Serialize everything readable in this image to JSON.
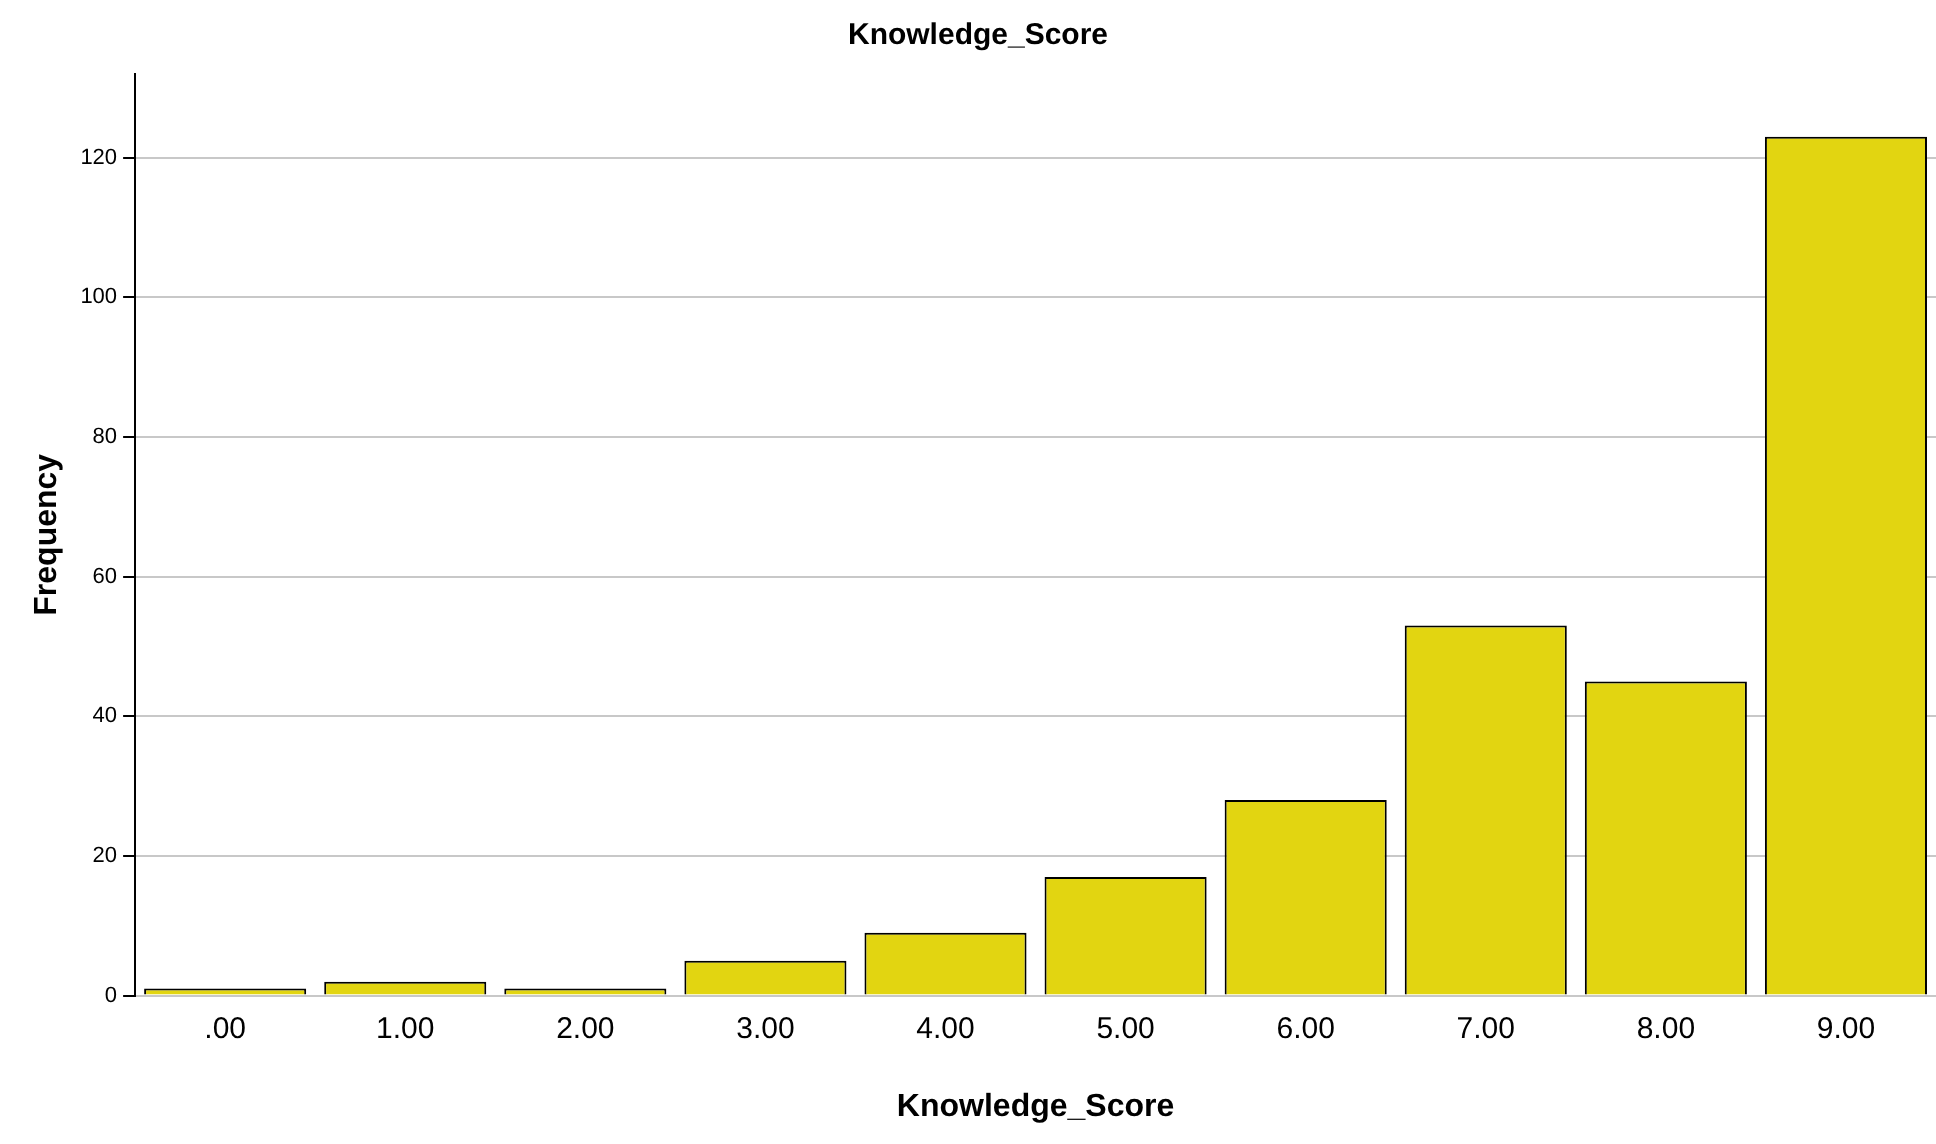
{
  "chart_data": {
    "type": "bar",
    "title": "Knowledge_Score",
    "xlabel": "Knowledge_Score",
    "ylabel": "Frequency",
    "categories": [
      ".00",
      "1.00",
      "2.00",
      "3.00",
      "4.00",
      "5.00",
      "6.00",
      "7.00",
      "8.00",
      "9.00"
    ],
    "values": [
      1,
      2,
      1,
      5,
      9,
      17,
      28,
      53,
      45,
      123
    ],
    "color": "#e2d511",
    "ylim": [
      0,
      132
    ],
    "yticks": [
      0,
      20,
      40,
      60,
      80,
      100,
      120
    ],
    "grid": "y",
    "legend": false
  }
}
